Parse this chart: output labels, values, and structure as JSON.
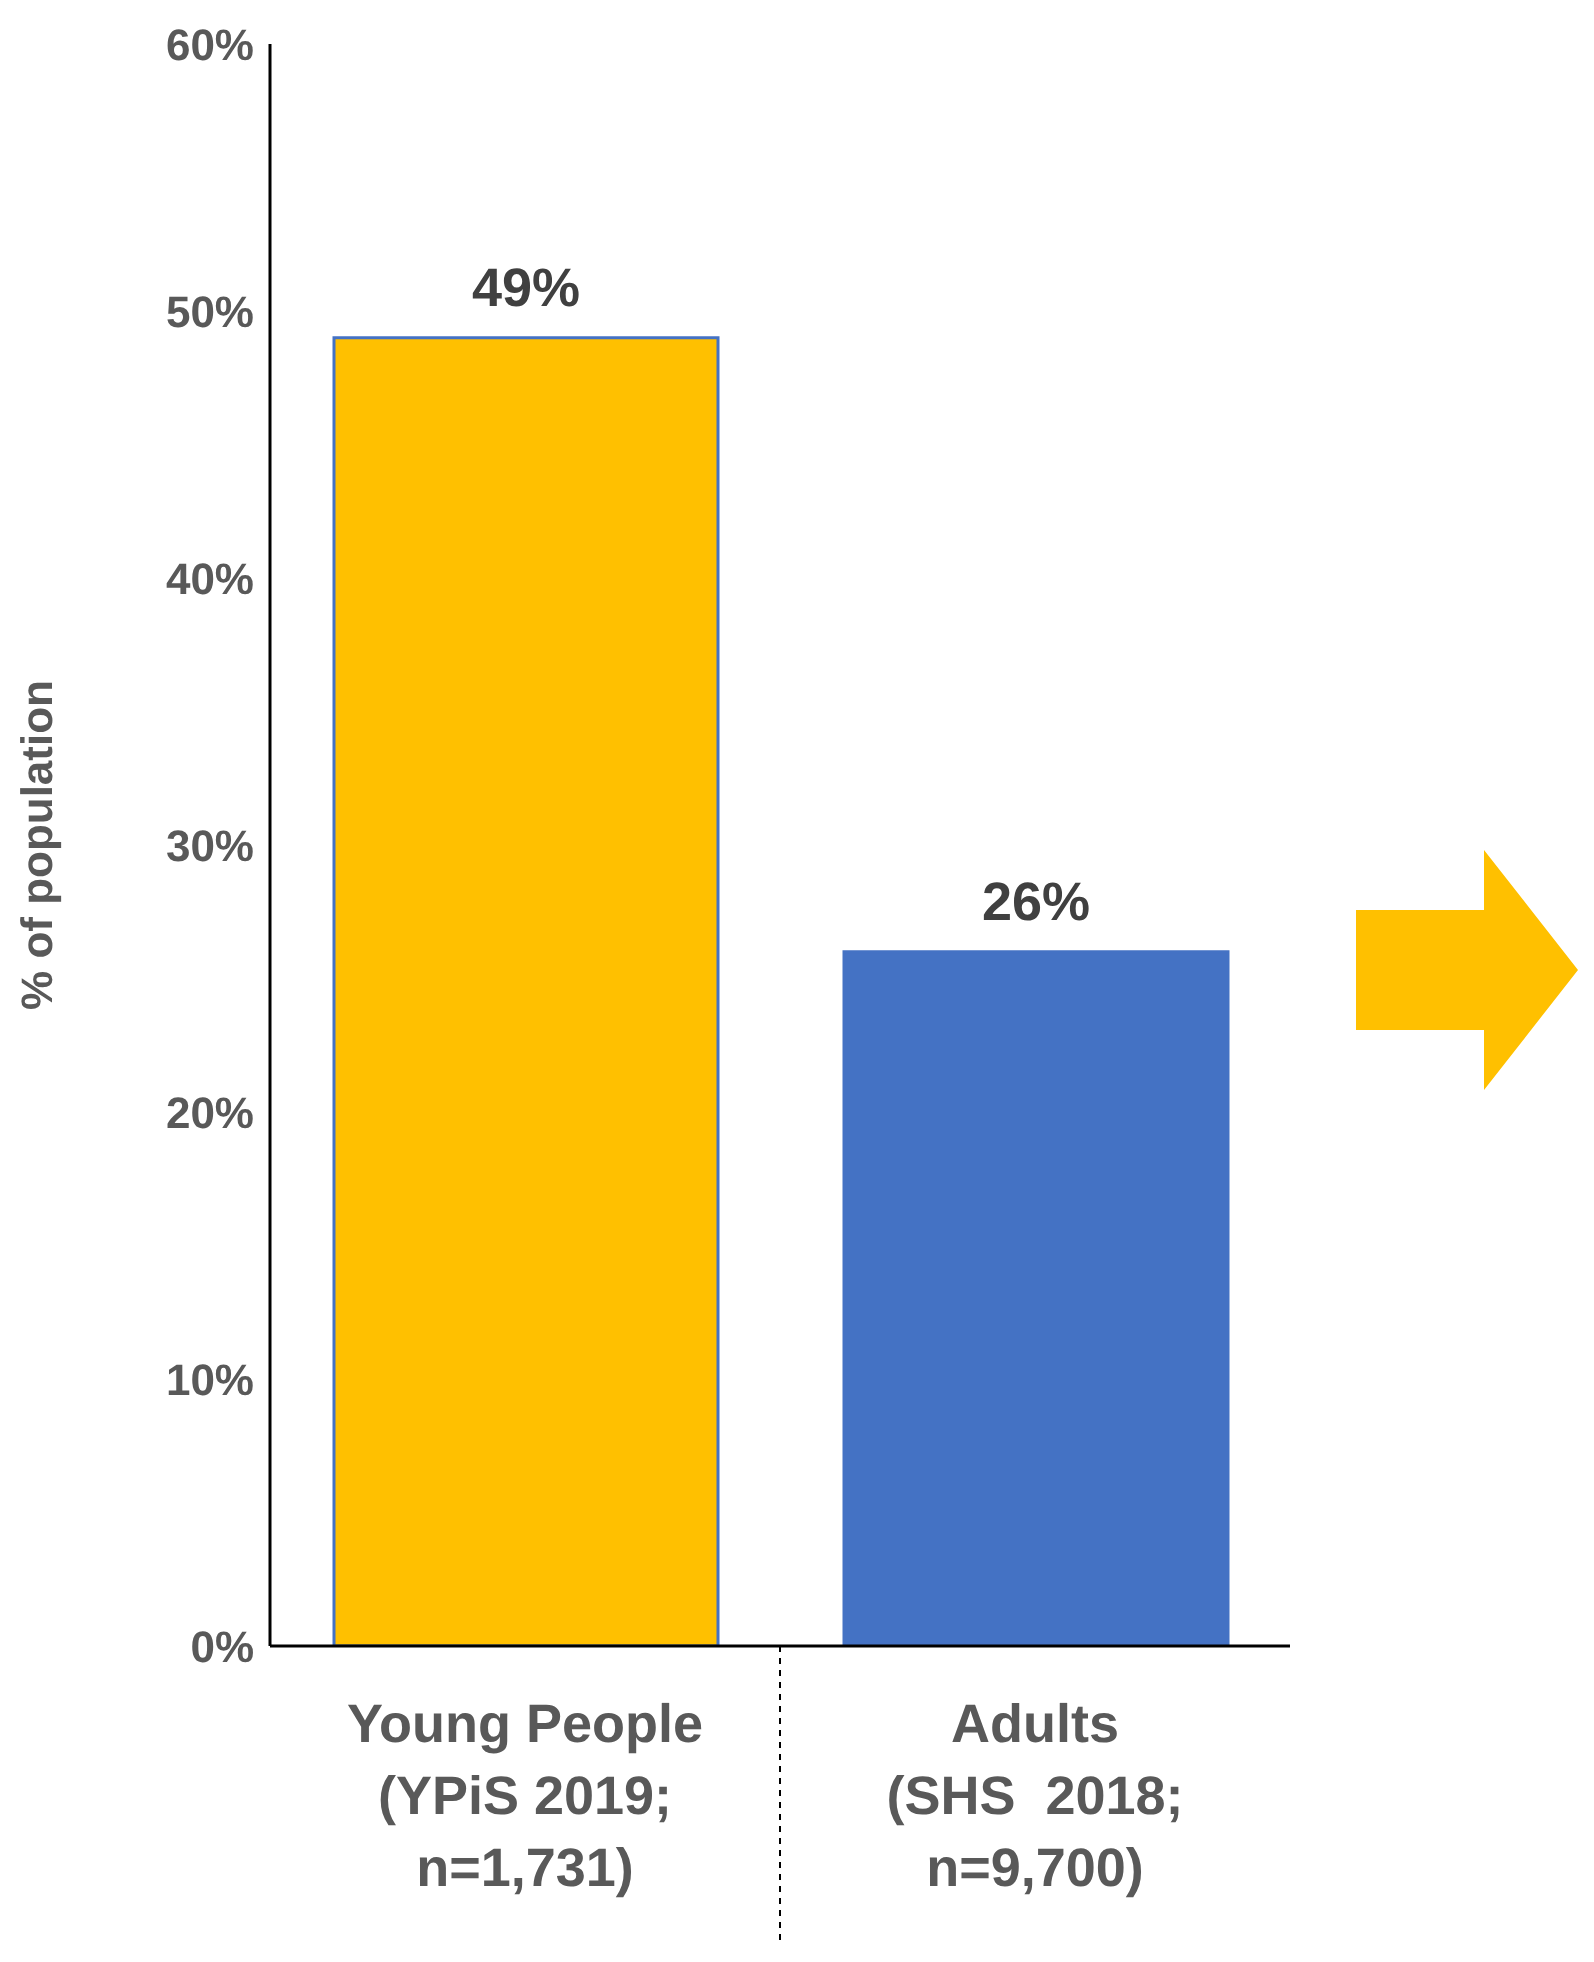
{
  "chart_data": {
    "type": "bar",
    "ylabel": "% of population",
    "categories": [
      "Young People\n(YPiS 2019;\nn=1,731)",
      "Adults\n(SHS  2018;\nn=9,700)"
    ],
    "values": [
      49,
      26
    ],
    "colors": [
      "#ffc000",
      "#4472c4"
    ],
    "value_labels": [
      "49%",
      "26%"
    ],
    "ylim": [
      0,
      60
    ],
    "yticks": [
      {
        "value": 0,
        "label": "0%"
      },
      {
        "value": 10,
        "label": "10%"
      },
      {
        "value": 20,
        "label": "20%"
      },
      {
        "value": 30,
        "label": "30%"
      },
      {
        "value": 40,
        "label": "40%"
      },
      {
        "value": 50,
        "label": "50%"
      },
      {
        "value": 60,
        "label": "60%"
      }
    ]
  }
}
